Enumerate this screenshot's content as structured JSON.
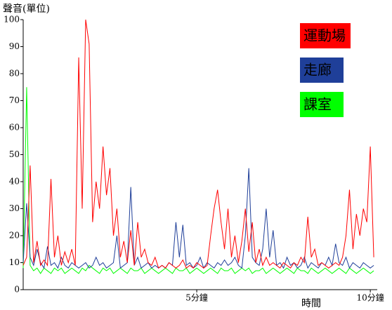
{
  "chart_data": {
    "type": "line",
    "y_label": "聲音(單位)",
    "x_label": "時間",
    "x": [
      0,
      0.1,
      0.2,
      0.3,
      0.4,
      0.5,
      0.6,
      0.7,
      0.8,
      0.9,
      1,
      1.1,
      1.2,
      1.3,
      1.4,
      1.5,
      1.6,
      1.7,
      1.8,
      1.9,
      2,
      2.1,
      2.2,
      2.3,
      2.4,
      2.5,
      2.6,
      2.7,
      2.8,
      2.9,
      3,
      3.1,
      3.2,
      3.3,
      3.4,
      3.5,
      3.6,
      3.7,
      3.8,
      3.9,
      4,
      4.1,
      4.2,
      4.3,
      4.4,
      4.5,
      4.6,
      4.7,
      4.8,
      4.9,
      5,
      5.1,
      5.2,
      5.3,
      5.4,
      5.5,
      5.6,
      5.7,
      5.8,
      5.9,
      6,
      6.1,
      6.2,
      6.3,
      6.4,
      6.5,
      6.6,
      6.7,
      6.8,
      6.9,
      7,
      7.1,
      7.2,
      7.3,
      7.4,
      7.5,
      7.6,
      7.7,
      7.8,
      7.9,
      8,
      8.1,
      8.2,
      8.3,
      8.4,
      8.5,
      8.6,
      8.7,
      8.8,
      8.9,
      9,
      9.1,
      9.2,
      9.3,
      9.4,
      9.5,
      9.6,
      9.7,
      9.8,
      9.9,
      10,
      10.1
    ],
    "series": [
      {
        "name": "運動場",
        "color": "#ff0000",
        "values": [
          9,
          12,
          46,
          10,
          18,
          9,
          11,
          9,
          41,
          12,
          20,
          9,
          14,
          10,
          15,
          9,
          86,
          30,
          100,
          91,
          25,
          40,
          30,
          53,
          35,
          45,
          20,
          30,
          12,
          18,
          10,
          22,
          9,
          25,
          12,
          15,
          10,
          9,
          12,
          8,
          9,
          8,
          10,
          9,
          8,
          9,
          11,
          8,
          9,
          8,
          10,
          9,
          8,
          9,
          20,
          30,
          37,
          25,
          15,
          30,
          12,
          20,
          10,
          18,
          30,
          14,
          25,
          10,
          15,
          9,
          12,
          9,
          10,
          9,
          8,
          10,
          9,
          8,
          10,
          9,
          12,
          10,
          27,
          12,
          15,
          9,
          10,
          9,
          8,
          9,
          10,
          9,
          12,
          20,
          37,
          15,
          28,
          20,
          30,
          25,
          53,
          12
        ]
      },
      {
        "name": "走廊",
        "color": "#1f3f99",
        "values": [
          10,
          32,
          12,
          9,
          15,
          10,
          8,
          16,
          9,
          10,
          8,
          12,
          9,
          8,
          10,
          9,
          8,
          9,
          10,
          8,
          9,
          12,
          9,
          10,
          8,
          9,
          10,
          20,
          8,
          9,
          10,
          38,
          9,
          12,
          8,
          9,
          10,
          8,
          9,
          8,
          9,
          8,
          10,
          9,
          25,
          12,
          24,
          9,
          10,
          8,
          9,
          12,
          8,
          10,
          9,
          8,
          10,
          9,
          11,
          9,
          10,
          12,
          9,
          8,
          20,
          45,
          12,
          10,
          9,
          15,
          30,
          12,
          22,
          9,
          10,
          8,
          12,
          9,
          10,
          8,
          9,
          12,
          8,
          10,
          9,
          8,
          10,
          9,
          12,
          9,
          17,
          10,
          9,
          12,
          8,
          10,
          9,
          8,
          10,
          9,
          8,
          9
        ]
      },
      {
        "name": "課室",
        "color": "#00ff00",
        "values": [
          8,
          75,
          9,
          7,
          8,
          6,
          8,
          7,
          6,
          8,
          7,
          8,
          6,
          7,
          8,
          7,
          6,
          8,
          7,
          9,
          8,
          7,
          6,
          8,
          7,
          8,
          6,
          7,
          8,
          7,
          6,
          8,
          7,
          7,
          8,
          6,
          7,
          8,
          7,
          6,
          7,
          8,
          7,
          6,
          8,
          7,
          7,
          8,
          6,
          7,
          8,
          7,
          6,
          7,
          8,
          7,
          6,
          8,
          7,
          7,
          8,
          6,
          7,
          8,
          7,
          8,
          6,
          7,
          7,
          8,
          6,
          7,
          8,
          7,
          6,
          7,
          8,
          7,
          6,
          8,
          7,
          7,
          6,
          8,
          7,
          6,
          7,
          8,
          7,
          6,
          7,
          8,
          7,
          6,
          8,
          7,
          6,
          7,
          8,
          7,
          6,
          7
        ]
      }
    ],
    "xlim": [
      0,
      10.2
    ],
    "ylim": [
      0,
      100
    ],
    "xticks": [
      {
        "value": 5,
        "label": "5分鐘"
      },
      {
        "value": 10,
        "label": "10分鐘"
      }
    ],
    "yticks": [
      0,
      10,
      20,
      30,
      40,
      50,
      60,
      70,
      80,
      90,
      100
    ]
  }
}
